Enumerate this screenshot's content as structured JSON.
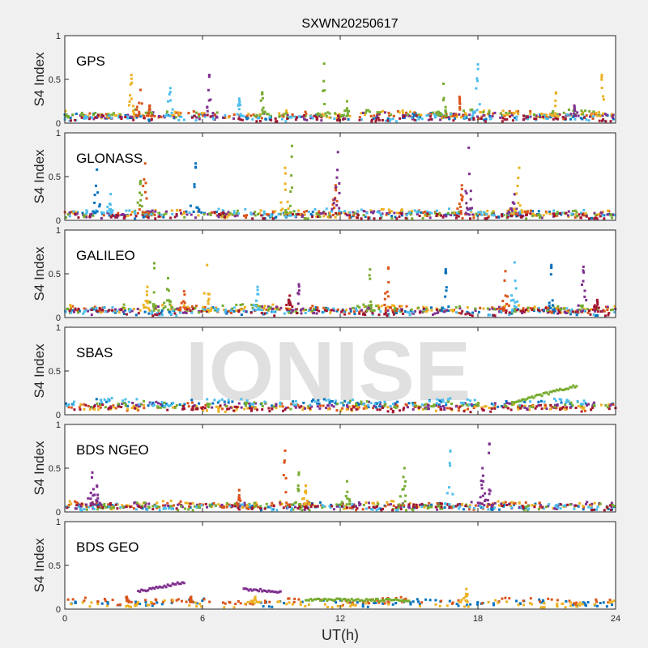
{
  "chart_data": {
    "type": "scatter",
    "title": "SXWN20250617",
    "xlabel": "UT(h)",
    "ylabel": "S4 Index",
    "xlim": [
      0,
      24
    ],
    "ylim": [
      0,
      1
    ],
    "xticks": [
      "0",
      "6",
      "12",
      "18",
      "24"
    ],
    "yticks": [
      "0",
      "0.5",
      "1"
    ],
    "watermark": "IONISE",
    "colors": [
      "#0072BD",
      "#D95319",
      "#EDB120",
      "#7E2F8E",
      "#77AC30",
      "#4DBEEE",
      "#A2142F"
    ],
    "panels": [
      {
        "label": "GPS",
        "baseline": [
          0.07,
          0.09,
          0.1,
          0.08,
          0.11,
          0.06,
          0.05
        ],
        "arcs": [],
        "spikes": [
          [
            2.9,
            0.55,
            2
          ],
          [
            3.3,
            0.38,
            1
          ],
          [
            3.7,
            0.2,
            1
          ],
          [
            4.6,
            0.4,
            5
          ],
          [
            6.3,
            0.55,
            3
          ],
          [
            7.6,
            0.28,
            5
          ],
          [
            8.6,
            0.35,
            4
          ],
          [
            11.3,
            0.68,
            4
          ],
          [
            12.3,
            0.25,
            4
          ],
          [
            16.5,
            0.45,
            4
          ],
          [
            17.2,
            0.3,
            1
          ],
          [
            18.0,
            0.67,
            5
          ],
          [
            21.4,
            0.35,
            2
          ],
          [
            22.2,
            0.2,
            3
          ],
          [
            23.4,
            0.55,
            2
          ]
        ]
      },
      {
        "label": "GLONASS",
        "baseline": [
          0.06,
          0.07,
          0.08,
          0.07,
          0.06,
          0.09,
          0.05
        ],
        "arcs": [],
        "spikes": [
          [
            1.4,
            0.58,
            0
          ],
          [
            2.0,
            0.3,
            5
          ],
          [
            3.3,
            0.45,
            4
          ],
          [
            3.5,
            0.65,
            1
          ],
          [
            5.7,
            0.65,
            0
          ],
          [
            9.6,
            0.6,
            2
          ],
          [
            9.9,
            0.85,
            4
          ],
          [
            11.8,
            0.4,
            1
          ],
          [
            11.9,
            0.78,
            3
          ],
          [
            17.3,
            0.4,
            1
          ],
          [
            17.6,
            0.83,
            3
          ],
          [
            19.6,
            0.3,
            3
          ],
          [
            19.8,
            0.6,
            2
          ]
        ]
      },
      {
        "label": "GALILEO",
        "baseline": [
          0.07,
          0.09,
          0.1,
          0.08,
          0.1,
          0.07,
          0.06
        ],
        "arcs": [],
        "spikes": [
          [
            3.6,
            0.35,
            2
          ],
          [
            3.9,
            0.62,
            4
          ],
          [
            4.5,
            0.45,
            4
          ],
          [
            5.2,
            0.3,
            1
          ],
          [
            6.2,
            0.6,
            2
          ],
          [
            8.4,
            0.35,
            5
          ],
          [
            9.8,
            0.25,
            6
          ],
          [
            10.2,
            0.38,
            3
          ],
          [
            13.3,
            0.55,
            4
          ],
          [
            14.1,
            0.57,
            1
          ],
          [
            16.6,
            0.55,
            0
          ],
          [
            19.2,
            0.53,
            1
          ],
          [
            19.6,
            0.63,
            5
          ],
          [
            21.2,
            0.6,
            0
          ],
          [
            22.6,
            0.58,
            3
          ],
          [
            23.2,
            0.2,
            6
          ]
        ]
      },
      {
        "label": "SBAS",
        "baseline": [
          0.13,
          0.09,
          0.08,
          0.1,
          0.11,
          0.14,
          0.07
        ],
        "arcs": [
          [
            4,
            19.5,
            22.3,
            0.14,
            0.33
          ]
        ],
        "spikes": []
      },
      {
        "label": "BDS NGEO",
        "baseline": [
          0.06,
          0.07,
          0.08,
          0.07,
          0.06,
          0.05,
          0.06
        ],
        "arcs": [],
        "spikes": [
          [
            1.2,
            0.45,
            3
          ],
          [
            1.4,
            0.3,
            3
          ],
          [
            7.6,
            0.25,
            1
          ],
          [
            9.6,
            0.7,
            1
          ],
          [
            10.2,
            0.45,
            4
          ],
          [
            10.5,
            0.3,
            2
          ],
          [
            12.3,
            0.35,
            4
          ],
          [
            14.8,
            0.5,
            4
          ],
          [
            16.8,
            0.7,
            5
          ],
          [
            18.2,
            0.5,
            3
          ],
          [
            18.5,
            0.78,
            3
          ]
        ]
      },
      {
        "label": "BDS GEO",
        "baseline": [
          0.07,
          0.09,
          0.06,
          null,
          null,
          null,
          null
        ],
        "arcs": [
          [
            3,
            3.2,
            5.2,
            0.2,
            0.31
          ],
          [
            3,
            7.8,
            9.4,
            0.23,
            0.2
          ],
          [
            4,
            10.5,
            15.0,
            0.11,
            0.1
          ]
        ],
        "spikes": [
          [
            17.5,
            0.23,
            2
          ],
          [
            2.7,
            0.14,
            1
          ],
          [
            5.5,
            0.14,
            1
          ],
          [
            8.3,
            0.14,
            2
          ]
        ]
      }
    ]
  }
}
